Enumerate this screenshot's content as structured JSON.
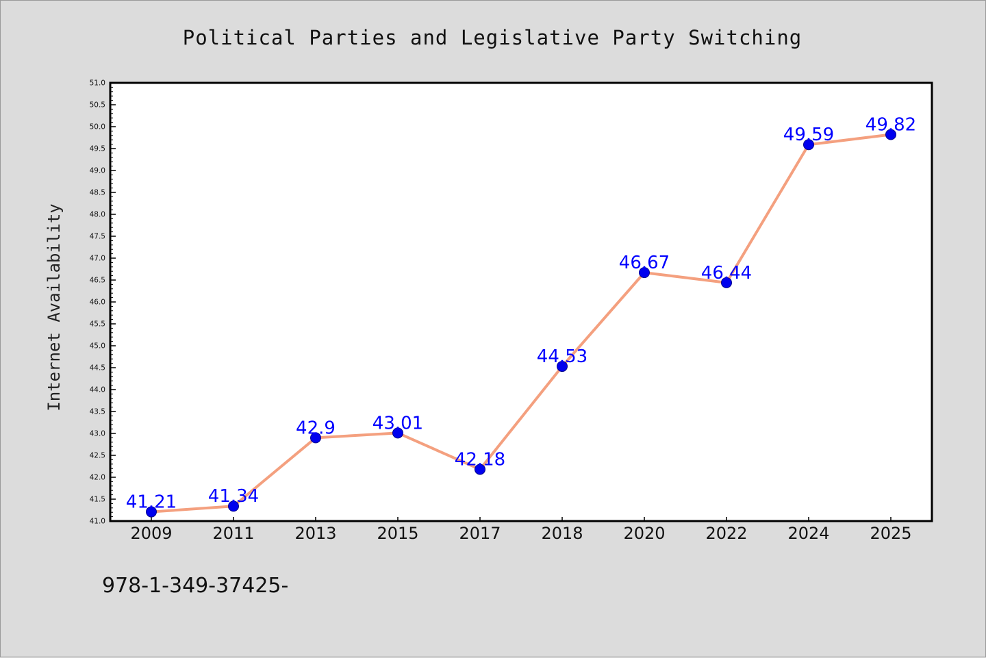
{
  "chart_data": {
    "type": "line",
    "title": "Political Parties and Legislative Party Switching",
    "xlabel": "",
    "ylabel": "Internet Availability",
    "categories": [
      "2009",
      "2011",
      "2013",
      "2015",
      "2017",
      "2018",
      "2020",
      "2022",
      "2024",
      "2025"
    ],
    "series": [
      {
        "values": [
          41.21,
          41.34,
          42.9,
          43.01,
          42.18,
          44.53,
          46.67,
          46.44,
          49.59,
          49.82
        ],
        "labels": [
          "41.21",
          "41.34",
          "42.9",
          "43.01",
          "42.18",
          "44.53",
          "46.67",
          "46.44",
          "49.59",
          "49.82"
        ]
      }
    ],
    "ylim": [
      41.0,
      51.0
    ],
    "yticks": [
      "41.0",
      "41.5",
      "42.0",
      "42.5",
      "43.0",
      "43.5",
      "44.0",
      "44.5",
      "45.0",
      "45.5",
      "46.0",
      "46.5",
      "47.0",
      "47.5",
      "48.0",
      "48.5",
      "49.0",
      "49.5",
      "50.0",
      "50.5",
      "51.0"
    ],
    "grid": false,
    "legend": "none",
    "colors": {
      "line": "#f4a07f",
      "marker": "#0000ee",
      "data_label": "#0000ff",
      "background": "#dcdcdc",
      "plot_area": "#ffffff"
    }
  },
  "footer_text": "978-1-349-37425-"
}
